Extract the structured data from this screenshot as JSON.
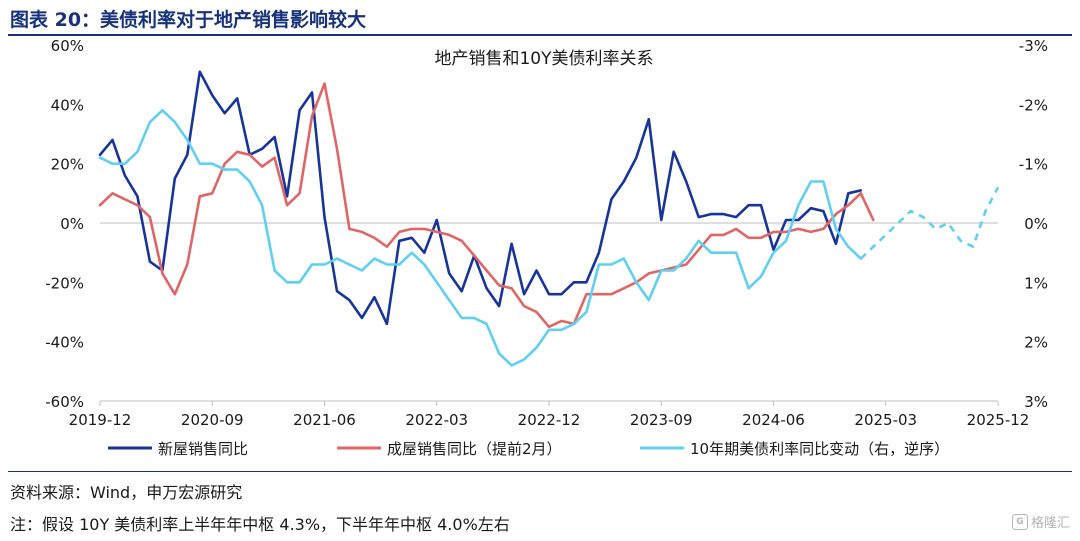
{
  "header": {
    "title": "图表 20：美债利率对于地产销售影响较大"
  },
  "footer": {
    "source": "资料来源：Wind，申万宏源研究",
    "note": "注：假设 10Y 美债利率上半年年中枢 4.3%，下半年年中枢 4.0%左右",
    "watermark": "格隆汇",
    "watermark_icon": "watermark-logo-icon"
  },
  "chart_data": {
    "type": "line",
    "title": "地产销售和10Y美债利率关系",
    "x_ticks": [
      "2019-12",
      "2020-09",
      "2021-06",
      "2022-03",
      "2022-12",
      "2023-09",
      "2024-06",
      "2025-03",
      "2025-12"
    ],
    "x_range": [
      "2019-12",
      "2025-12"
    ],
    "y_left": {
      "ticks": [
        "60%",
        "40%",
        "20%",
        "0%",
        "-20%",
        "-40%",
        "-60%"
      ],
      "range": [
        -60,
        60
      ]
    },
    "y_right": {
      "ticks": [
        "-3%",
        "-2%",
        "-1%",
        "0%",
        "1%",
        "2%",
        "3%"
      ],
      "range": [
        -3,
        3
      ],
      "inverted": true
    },
    "grid": false,
    "legend_position": "bottom",
    "series": [
      {
        "name": "新屋销售同比",
        "color": "#17349a",
        "axis": "left",
        "dashed_from": null,
        "x": [
          "2019-12",
          "2020-01",
          "2020-02",
          "2020-03",
          "2020-04",
          "2020-05",
          "2020-06",
          "2020-07",
          "2020-08",
          "2020-09",
          "2020-10",
          "2020-11",
          "2020-12",
          "2021-01",
          "2021-02",
          "2021-03",
          "2021-04",
          "2021-05",
          "2021-06",
          "2021-07",
          "2021-08",
          "2021-09",
          "2021-10",
          "2021-11",
          "2021-12",
          "2022-01",
          "2022-02",
          "2022-03",
          "2022-04",
          "2022-05",
          "2022-06",
          "2022-07",
          "2022-08",
          "2022-09",
          "2022-10",
          "2022-11",
          "2022-12",
          "2023-01",
          "2023-02",
          "2023-03",
          "2023-04",
          "2023-05",
          "2023-06",
          "2023-07",
          "2023-08",
          "2023-09",
          "2023-10",
          "2023-11",
          "2023-12",
          "2024-01",
          "2024-02",
          "2024-03",
          "2024-04",
          "2024-05",
          "2024-06",
          "2024-07",
          "2024-08",
          "2024-09",
          "2024-10",
          "2024-11",
          "2024-12",
          "2025-01"
        ],
        "values": [
          23,
          28,
          16,
          9,
          -13,
          -16,
          15,
          23,
          51,
          43,
          37,
          42,
          23,
          25,
          29,
          9,
          38,
          44,
          2,
          -23,
          -26,
          -32,
          -25,
          -34,
          -6,
          -5,
          -10,
          1,
          -17,
          -23,
          -11,
          -22,
          -28,
          -7,
          -24,
          -16,
          -24,
          -24,
          -20,
          -20,
          -10,
          8,
          14,
          22,
          35,
          1,
          24,
          14,
          2,
          3,
          3,
          2,
          6,
          6,
          -9,
          1,
          1,
          5,
          4,
          -7,
          10,
          11
        ]
      },
      {
        "name": "成屋销售同比（提前2月）",
        "color": "#e06565",
        "axis": "left",
        "dashed_from": null,
        "x": [
          "2019-12",
          "2020-01",
          "2020-02",
          "2020-03",
          "2020-04",
          "2020-05",
          "2020-06",
          "2020-07",
          "2020-08",
          "2020-09",
          "2020-10",
          "2020-11",
          "2020-12",
          "2021-01",
          "2021-02",
          "2021-03",
          "2021-04",
          "2021-05",
          "2021-06",
          "2021-07",
          "2021-08",
          "2021-09",
          "2021-10",
          "2021-11",
          "2021-12",
          "2022-01",
          "2022-02",
          "2022-03",
          "2022-04",
          "2022-05",
          "2022-06",
          "2022-07",
          "2022-08",
          "2022-09",
          "2022-10",
          "2022-11",
          "2022-12",
          "2023-01",
          "2023-02",
          "2023-03",
          "2023-04",
          "2023-05",
          "2023-06",
          "2023-07",
          "2023-08",
          "2023-09",
          "2023-10",
          "2023-11",
          "2023-12",
          "2024-01",
          "2024-02",
          "2024-03",
          "2024-04",
          "2024-05",
          "2024-06",
          "2024-07",
          "2024-08",
          "2024-09",
          "2024-10",
          "2024-11",
          "2024-12",
          "2025-01",
          "2025-02"
        ],
        "values": [
          6,
          10,
          8,
          6,
          2,
          -17,
          -24,
          -14,
          9,
          10,
          20,
          24,
          23,
          19,
          22,
          6,
          10,
          36,
          47,
          25,
          -2,
          -3,
          -5,
          -8,
          -3,
          -2,
          -2,
          -3,
          -4,
          -6,
          -11,
          -16,
          -21,
          -22,
          -28,
          -30,
          -35,
          -33,
          -34,
          -24,
          -24,
          -24,
          -22,
          -20,
          -17,
          -16,
          -15,
          -14,
          -9,
          -4,
          -4,
          -2,
          -5,
          -5,
          -3,
          -3,
          -2,
          -3,
          -2,
          3,
          6,
          10,
          1
        ]
      },
      {
        "name": "10年期美债利率同比变动（右，逆序）",
        "color": "#5fd0f2",
        "axis": "right",
        "dashed_from": "2025-01",
        "x": [
          "2019-12",
          "2020-01",
          "2020-02",
          "2020-03",
          "2020-04",
          "2020-05",
          "2020-06",
          "2020-07",
          "2020-08",
          "2020-09",
          "2020-10",
          "2020-11",
          "2020-12",
          "2021-01",
          "2021-02",
          "2021-03",
          "2021-04",
          "2021-05",
          "2021-06",
          "2021-07",
          "2021-08",
          "2021-09",
          "2021-10",
          "2021-11",
          "2021-12",
          "2022-01",
          "2022-02",
          "2022-03",
          "2022-04",
          "2022-05",
          "2022-06",
          "2022-07",
          "2022-08",
          "2022-09",
          "2022-10",
          "2022-11",
          "2022-12",
          "2023-01",
          "2023-02",
          "2023-03",
          "2023-04",
          "2023-05",
          "2023-06",
          "2023-07",
          "2023-08",
          "2023-09",
          "2023-10",
          "2023-11",
          "2023-12",
          "2024-01",
          "2024-02",
          "2024-03",
          "2024-04",
          "2024-05",
          "2024-06",
          "2024-07",
          "2024-08",
          "2024-09",
          "2024-10",
          "2024-11",
          "2024-12",
          "2025-01",
          "2025-02",
          "2025-03",
          "2025-04",
          "2025-05",
          "2025-06",
          "2025-07",
          "2025-08",
          "2025-09",
          "2025-10",
          "2025-11",
          "2025-12"
        ],
        "values": [
          -1.1,
          -1.0,
          -1.0,
          -1.2,
          -1.7,
          -1.9,
          -1.7,
          -1.4,
          -1.0,
          -1.0,
          -0.9,
          -0.9,
          -0.7,
          -0.3,
          0.8,
          1.0,
          1.0,
          0.7,
          0.7,
          0.6,
          0.7,
          0.8,
          0.6,
          0.7,
          0.7,
          0.5,
          0.7,
          1.0,
          1.3,
          1.6,
          1.6,
          1.7,
          2.2,
          2.4,
          2.3,
          2.1,
          1.8,
          1.8,
          1.7,
          1.5,
          0.7,
          0.7,
          0.6,
          1.0,
          1.3,
          0.8,
          0.8,
          0.6,
          0.3,
          0.5,
          0.5,
          0.5,
          1.1,
          0.9,
          0.5,
          0.3,
          -0.3,
          -0.7,
          -0.7,
          0.1,
          0.4,
          0.6,
          0.4,
          0.2,
          0.0,
          -0.2,
          -0.1,
          0.1,
          0.0,
          0.3,
          0.4,
          -0.2,
          -0.6
        ]
      }
    ]
  }
}
